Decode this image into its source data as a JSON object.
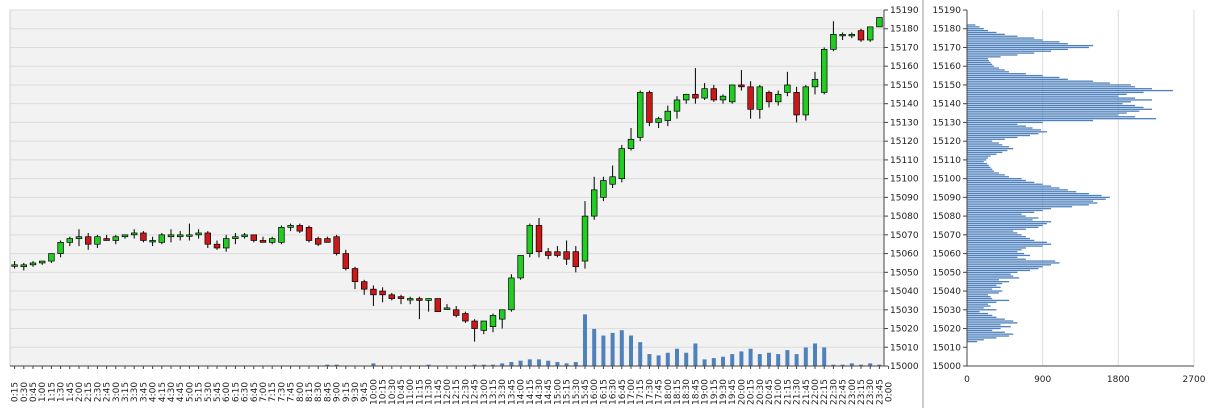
{
  "colors": {
    "up": "#22cc22",
    "down": "#cc1818",
    "volume": "#4f81bd",
    "profile": "#4f81bd",
    "plot_bg": "#f2f2f2",
    "grid": "#dcdcdc",
    "axis": "#444444"
  },
  "chart_data": [
    {
      "type": "candlestick",
      "title": "",
      "ylim": [
        15000,
        15190
      ],
      "y_ticks": [
        15000,
        15010,
        15020,
        15030,
        15040,
        15050,
        15060,
        15070,
        15080,
        15090,
        15100,
        15110,
        15120,
        15130,
        15140,
        15150,
        15160,
        15170,
        15180,
        15190
      ],
      "x_tick_labels": [
        "0:15",
        "0:30",
        "0:45",
        "1:00",
        "1:15",
        "1:30",
        "1:45",
        "2:00",
        "2:15",
        "2:30",
        "2:45",
        "3:00",
        "3:15",
        "3:30",
        "3:45",
        "4:00",
        "4:15",
        "4:30",
        "4:45",
        "5:00",
        "5:15",
        "5:30",
        "5:45",
        "6:00",
        "6:15",
        "6:30",
        "6:45",
        "7:00",
        "7:15",
        "7:30",
        "7:45",
        "8:00",
        "8:15",
        "8:30",
        "8:45",
        "9:00",
        "9:15",
        "9:30",
        "9:45",
        "10:00",
        "10:15",
        "10:30",
        "10:45",
        "11:00",
        "11:15",
        "11:30",
        "11:45",
        "12:00",
        "12:15",
        "12:30",
        "12:45",
        "13:00",
        "13:15",
        "13:30",
        "13:45",
        "14:00",
        "14:15",
        "14:30",
        "14:45",
        "15:00",
        "15:15",
        "15:30",
        "15:45",
        "16:00",
        "16:15",
        "16:30",
        "16:45",
        "17:00",
        "17:15",
        "17:30",
        "17:45",
        "18:00",
        "18:15",
        "18:30",
        "18:45",
        "19:00",
        "19:15",
        "19:30",
        "19:45",
        "20:00",
        "20:15",
        "20:30",
        "20:45",
        "21:00",
        "21:15",
        "21:30",
        "21:45",
        "22:00",
        "22:15",
        "22:30",
        "22:45",
        "23:00",
        "23:15",
        "23:30",
        "23:45",
        "0:00"
      ],
      "candles": [
        {
          "o": 15054,
          "h": 15056,
          "l": 15052,
          "c": 15054
        },
        {
          "o": 15053,
          "h": 15055,
          "l": 15051,
          "c": 15054
        },
        {
          "o": 15054,
          "h": 15056,
          "l": 15053,
          "c": 15055
        },
        {
          "o": 15055,
          "h": 15056,
          "l": 15054,
          "c": 15056
        },
        {
          "o": 15056,
          "h": 15060,
          "l": 15055,
          "c": 15060
        },
        {
          "o": 15060,
          "h": 15067,
          "l": 15058,
          "c": 15066
        },
        {
          "o": 15066,
          "h": 15069,
          "l": 15064,
          "c": 15068
        },
        {
          "o": 15068,
          "h": 15073,
          "l": 15064,
          "c": 15069
        },
        {
          "o": 15069,
          "h": 15071,
          "l": 15062,
          "c": 15065
        },
        {
          "o": 15065,
          "h": 15070,
          "l": 15063,
          "c": 15069
        },
        {
          "o": 15068,
          "h": 15070,
          "l": 15067,
          "c": 15067
        },
        {
          "o": 15067,
          "h": 15070,
          "l": 15065,
          "c": 15069
        },
        {
          "o": 15069,
          "h": 15070,
          "l": 15068,
          "c": 15070
        },
        {
          "o": 15070,
          "h": 15073,
          "l": 15068,
          "c": 15071
        },
        {
          "o": 15071,
          "h": 15072,
          "l": 15066,
          "c": 15067
        },
        {
          "o": 15067,
          "h": 15069,
          "l": 15064,
          "c": 15067
        },
        {
          "o": 15066,
          "h": 15071,
          "l": 15065,
          "c": 15070
        },
        {
          "o": 15069,
          "h": 15073,
          "l": 15066,
          "c": 15070
        },
        {
          "o": 15069,
          "h": 15072,
          "l": 15067,
          "c": 15070
        },
        {
          "o": 15070,
          "h": 15076,
          "l": 15067,
          "c": 15070
        },
        {
          "o": 15070,
          "h": 15073,
          "l": 15068,
          "c": 15071
        },
        {
          "o": 15071,
          "h": 15072,
          "l": 15063,
          "c": 15065
        },
        {
          "o": 15065,
          "h": 15067,
          "l": 15062,
          "c": 15063
        },
        {
          "o": 15063,
          "h": 15070,
          "l": 15061,
          "c": 15068
        },
        {
          "o": 15068,
          "h": 15071,
          "l": 15065,
          "c": 15069
        },
        {
          "o": 15069,
          "h": 15071,
          "l": 15068,
          "c": 15070
        },
        {
          "o": 15070,
          "h": 15070,
          "l": 15066,
          "c": 15067
        },
        {
          "o": 15067,
          "h": 15069,
          "l": 15066,
          "c": 15066
        },
        {
          "o": 15066,
          "h": 15069,
          "l": 15065,
          "c": 15068
        },
        {
          "o": 15066,
          "h": 15075,
          "l": 15065,
          "c": 15074
        },
        {
          "o": 15074,
          "h": 15076,
          "l": 15072,
          "c": 15075
        },
        {
          "o": 15075,
          "h": 15076,
          "l": 15071,
          "c": 15072
        },
        {
          "o": 15074,
          "h": 15075,
          "l": 15066,
          "c": 15067
        },
        {
          "o": 15068,
          "h": 15069,
          "l": 15064,
          "c": 15065
        },
        {
          "o": 15068,
          "h": 15069,
          "l": 15066,
          "c": 15066
        },
        {
          "o": 15069,
          "h": 15070,
          "l": 15059,
          "c": 15060
        },
        {
          "o": 15060,
          "h": 15062,
          "l": 15051,
          "c": 15052
        },
        {
          "o": 15052,
          "h": 15053,
          "l": 15041,
          "c": 15045
        },
        {
          "o": 15045,
          "h": 15046,
          "l": 15038,
          "c": 15041
        },
        {
          "o": 15041,
          "h": 15043,
          "l": 15032,
          "c": 15038
        },
        {
          "o": 15040,
          "h": 15042,
          "l": 15034,
          "c": 15038
        },
        {
          "o": 15038,
          "h": 15039,
          "l": 15035,
          "c": 15036
        },
        {
          "o": 15037,
          "h": 15038,
          "l": 15033,
          "c": 15036
        },
        {
          "o": 15036,
          "h": 15037,
          "l": 15033,
          "c": 15036
        },
        {
          "o": 15036,
          "h": 15037,
          "l": 15025,
          "c": 15035
        },
        {
          "o": 15035,
          "h": 15036,
          "l": 15029,
          "c": 15036
        },
        {
          "o": 15036,
          "h": 15036,
          "l": 15029,
          "c": 15029
        },
        {
          "o": 15031,
          "h": 15033,
          "l": 15030,
          "c": 15031
        },
        {
          "o": 15030,
          "h": 15032,
          "l": 15026,
          "c": 15027
        },
        {
          "o": 15028,
          "h": 15029,
          "l": 15023,
          "c": 15024
        },
        {
          "o": 15024,
          "h": 15025,
          "l": 15013,
          "c": 15020
        },
        {
          "o": 15019,
          "h": 15024,
          "l": 15017,
          "c": 15024
        },
        {
          "o": 15021,
          "h": 15028,
          "l": 15018,
          "c": 15027
        },
        {
          "o": 15025,
          "h": 15030,
          "l": 15020,
          "c": 15030
        },
        {
          "o": 15030,
          "h": 15049,
          "l": 15029,
          "c": 15047
        },
        {
          "o": 15047,
          "h": 15059,
          "l": 15046,
          "c": 15059
        },
        {
          "o": 15060,
          "h": 15076,
          "l": 15058,
          "c": 15075
        },
        {
          "o": 15075,
          "h": 15079,
          "l": 15058,
          "c": 15061
        },
        {
          "o": 15061,
          "h": 15063,
          "l": 15057,
          "c": 15059
        },
        {
          "o": 15061,
          "h": 15064,
          "l": 15058,
          "c": 15059
        },
        {
          "o": 15061,
          "h": 15067,
          "l": 15054,
          "c": 15057
        },
        {
          "o": 15061,
          "h": 15064,
          "l": 15050,
          "c": 15053
        },
        {
          "o": 15056,
          "h": 15088,
          "l": 15052,
          "c": 15080
        },
        {
          "o": 15080,
          "h": 15101,
          "l": 15078,
          "c": 15094
        },
        {
          "o": 15090,
          "h": 15101,
          "l": 15088,
          "c": 15099
        },
        {
          "o": 15097,
          "h": 15107,
          "l": 15095,
          "c": 15101
        },
        {
          "o": 15100,
          "h": 15118,
          "l": 15098,
          "c": 15116
        },
        {
          "o": 15116,
          "h": 15127,
          "l": 15115,
          "c": 15121
        },
        {
          "o": 15122,
          "h": 15147,
          "l": 15120,
          "c": 15146
        },
        {
          "o": 15146,
          "h": 15147,
          "l": 15128,
          "c": 15130
        },
        {
          "o": 15130,
          "h": 15133,
          "l": 15127,
          "c": 15132
        },
        {
          "o": 15131,
          "h": 15139,
          "l": 15128,
          "c": 15136
        },
        {
          "o": 15136,
          "h": 15144,
          "l": 15132,
          "c": 15142
        },
        {
          "o": 15142,
          "h": 15145,
          "l": 15140,
          "c": 15145
        },
        {
          "o": 15145,
          "h": 15159,
          "l": 15140,
          "c": 15143
        },
        {
          "o": 15143,
          "h": 15151,
          "l": 15142,
          "c": 15148
        },
        {
          "o": 15148,
          "h": 15150,
          "l": 15141,
          "c": 15142
        },
        {
          "o": 15142,
          "h": 15145,
          "l": 15140,
          "c": 15144
        },
        {
          "o": 15141,
          "h": 15150,
          "l": 15140,
          "c": 15150
        },
        {
          "o": 15150,
          "h": 15158,
          "l": 15147,
          "c": 15149
        },
        {
          "o": 15149,
          "h": 15152,
          "l": 15132,
          "c": 15137
        },
        {
          "o": 15137,
          "h": 15150,
          "l": 15132,
          "c": 15149
        },
        {
          "o": 15146,
          "h": 15147,
          "l": 15138,
          "c": 15141
        },
        {
          "o": 15141,
          "h": 15147,
          "l": 15139,
          "c": 15145
        },
        {
          "o": 15146,
          "h": 15157,
          "l": 15144,
          "c": 15150
        },
        {
          "o": 15146,
          "h": 15149,
          "l": 15130,
          "c": 15134
        },
        {
          "o": 15134,
          "h": 15150,
          "l": 15131,
          "c": 15149
        },
        {
          "o": 15149,
          "h": 15157,
          "l": 15145,
          "c": 15153
        },
        {
          "o": 15146,
          "h": 15170,
          "l": 15145,
          "c": 15169
        },
        {
          "o": 15169,
          "h": 15184,
          "l": 15168,
          "c": 15177
        },
        {
          "o": 15177,
          "h": 15178,
          "l": 15174,
          "c": 15177
        },
        {
          "o": 15177,
          "h": 15178,
          "l": 15175,
          "c": 15177
        },
        {
          "o": 15179,
          "h": 15180,
          "l": 15173,
          "c": 15174
        },
        {
          "o": 15174,
          "h": 15181,
          "l": 15173,
          "c": 15181
        },
        {
          "o": 15181,
          "h": 15186,
          "l": 15181,
          "c": 15186
        }
      ],
      "volume": [
        0.0,
        0.0,
        0.0,
        0.0,
        0.0,
        0.0,
        0.0,
        0.0,
        0.0,
        0.0,
        0.0,
        0.0,
        0.0,
        0.0,
        0.0,
        0.0,
        0.0,
        0.0,
        0.0,
        0.0,
        0.0,
        0.0,
        0.0,
        0.0,
        0.0,
        0.0,
        0.0,
        0.0,
        0.0,
        0.0,
        0.0,
        0.0,
        0.0,
        0.0,
        0.5,
        0.5,
        0.0,
        0.0,
        0.0,
        1.0,
        0.0,
        0.0,
        0.0,
        0.0,
        0.0,
        0.5,
        0.0,
        0.0,
        0.0,
        0.0,
        0.5,
        0.5,
        0.5,
        1.0,
        1.5,
        2.0,
        2.5,
        2.5,
        2.0,
        1.5,
        1.0,
        1.5,
        19.5,
        14.0,
        11.5,
        12.5,
        13.5,
        11.5,
        9.0,
        4.5,
        4.0,
        5.0,
        6.5,
        5.0,
        8.5,
        2.5,
        3.0,
        3.5,
        4.5,
        5.5,
        6.5,
        4.5,
        5.0,
        4.5,
        6.0,
        4.5,
        7.0,
        8.5,
        7.0,
        0.5,
        0.5,
        1.0,
        0.5,
        1.0,
        0.5,
        0.0
      ],
      "volume_ylim": [
        0,
        40
      ]
    },
    {
      "type": "bar",
      "orientation": "horizontal",
      "xlim": [
        0,
        2700
      ],
      "x_ticks": [
        0,
        900,
        1800,
        2700
      ],
      "ylim": [
        15000,
        15190
      ],
      "y_ticks": [
        15000,
        15010,
        15020,
        15030,
        15040,
        15050,
        15060,
        15070,
        15080,
        15090,
        15100,
        15110,
        15120,
        15130,
        15140,
        15150,
        15160,
        15170,
        15180,
        15190
      ],
      "price_step": 1,
      "price_start": 15013,
      "values": [
        120,
        200,
        350,
        500,
        550,
        450,
        300,
        400,
        520,
        400,
        600,
        550,
        450,
        350,
        300,
        250,
        150,
        350,
        200,
        280,
        250,
        350,
        500,
        300,
        280,
        250,
        380,
        420,
        300,
        400,
        350,
        420,
        500,
        380,
        620,
        550,
        520,
        600,
        750,
        850,
        900,
        1000,
        1100,
        1050,
        700,
        600,
        750,
        680,
        600,
        650,
        700,
        900,
        1000,
        950,
        800,
        750,
        700,
        650,
        600,
        550,
        700,
        850,
        900,
        950,
        1000,
        780,
        850,
        700,
        650,
        800,
        900,
        1000,
        1250,
        1450,
        1550,
        1500,
        1650,
        1700,
        1600,
        1450,
        1300,
        1200,
        1100,
        1000,
        900,
        800,
        700,
        650,
        500,
        450,
        380,
        320,
        300,
        280,
        260,
        240,
        200,
        230,
        250,
        280,
        350,
        420,
        480,
        550,
        500,
        420,
        380,
        300,
        450,
        600,
        750,
        850,
        950,
        880,
        780,
        700,
        600,
        900,
        1500,
        2250,
        2000,
        1800,
        1900,
        2050,
        2200,
        2100,
        2000,
        1850,
        1950,
        2200,
        2000,
        1800,
        1900,
        2100,
        2450,
        2200,
        2000,
        1950,
        1700,
        1500,
        1200,
        1100,
        900,
        700,
        500,
        450,
        380,
        320,
        300,
        280,
        260,
        250,
        400,
        600,
        800,
        1000,
        1200,
        1450,
        1500,
        1200,
        1100,
        900,
        800,
        600,
        450,
        350,
        250,
        200,
        150,
        100
      ]
    }
  ]
}
